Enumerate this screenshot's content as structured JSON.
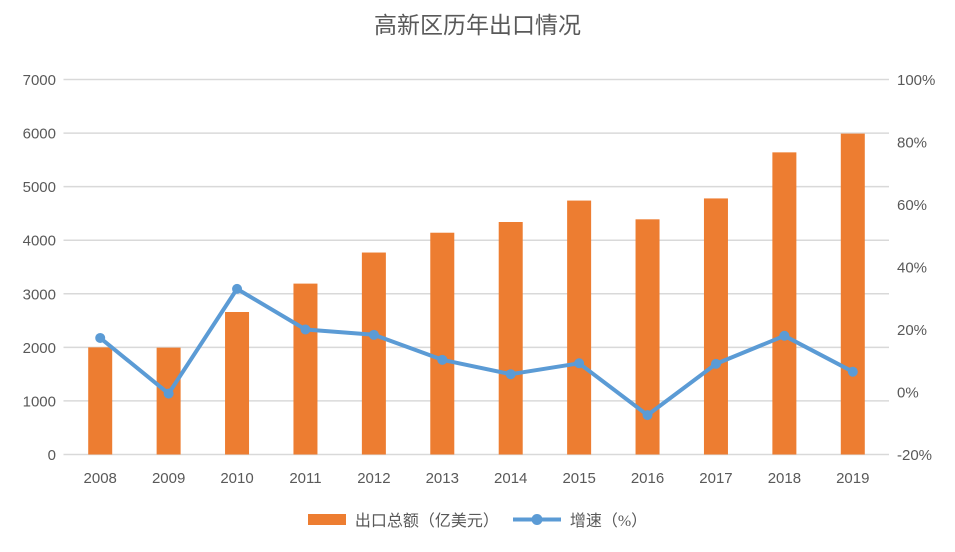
{
  "chart_data": {
    "type": "combo",
    "title": "高新区历年出口情况",
    "categories": [
      "2008",
      "2009",
      "2010",
      "2011",
      "2012",
      "2013",
      "2014",
      "2015",
      "2016",
      "2017",
      "2018",
      "2019"
    ],
    "series": [
      {
        "name": "出口总额（亿美元）",
        "chart": "bar",
        "axis": "left",
        "color": "#ED7D31",
        "values": [
          2000,
          1995,
          2660,
          3190,
          3770,
          4140,
          4340,
          4740,
          4390,
          4780,
          5640,
          5990
        ]
      },
      {
        "name": "增速（%）",
        "chart": "line",
        "axis": "right",
        "color": "#5B9BD5",
        "marker": "circle",
        "values": [
          17.3,
          -0.5,
          33,
          20,
          18.3,
          10.3,
          5.7,
          9.2,
          -7.4,
          9,
          18,
          6.5
        ]
      }
    ],
    "left_axis": {
      "min": 0,
      "max": 7000,
      "tick_step": 1000,
      "tick_labels": [
        "0",
        "1000",
        "2000",
        "3000",
        "4000",
        "5000",
        "6000",
        "7000"
      ]
    },
    "right_axis": {
      "min": -20,
      "max": 100,
      "tick_step": 20,
      "tick_labels": [
        "-20%",
        "0%",
        "20%",
        "40%",
        "60%",
        "80%",
        "100%"
      ]
    },
    "legend_position": "bottom",
    "gridlines": "horizontal",
    "colors": {
      "grid": "#D9D9D9",
      "axis_text": "#595959",
      "title_text": "#595959",
      "background": "#FFFFFF"
    }
  }
}
